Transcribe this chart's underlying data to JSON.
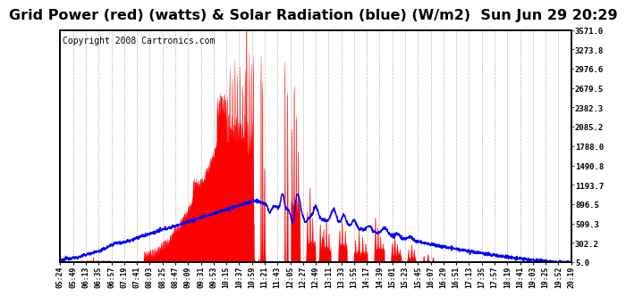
{
  "title": "Grid Power (red) (watts) & Solar Radiation (blue) (W/m2)  Sun Jun 29 20:29",
  "copyright": "Copyright 2008 Cartronics.com",
  "yticks": [
    5.0,
    302.2,
    599.3,
    896.5,
    1193.7,
    1490.8,
    1788.0,
    2085.2,
    2382.3,
    2679.5,
    2976.6,
    3273.8,
    3571.0
  ],
  "ylim": [
    5.0,
    3571.0
  ],
  "background_color": "#ffffff",
  "grid_color": "#aaaaaa",
  "title_fontsize": 11.5,
  "copyright_fontsize": 7,
  "xtick_labels": [
    "05:24",
    "05:49",
    "06:13",
    "06:35",
    "06:57",
    "07:19",
    "07:41",
    "08:03",
    "08:25",
    "08:47",
    "09:09",
    "09:31",
    "09:53",
    "10:15",
    "10:37",
    "10:59",
    "11:21",
    "11:43",
    "12:05",
    "12:27",
    "12:49",
    "13:11",
    "13:33",
    "13:55",
    "14:17",
    "14:39",
    "15:01",
    "15:23",
    "15:45",
    "16:07",
    "16:29",
    "16:51",
    "17:13",
    "17:35",
    "17:57",
    "18:19",
    "18:41",
    "19:03",
    "19:25",
    "19:52",
    "20:19"
  ]
}
